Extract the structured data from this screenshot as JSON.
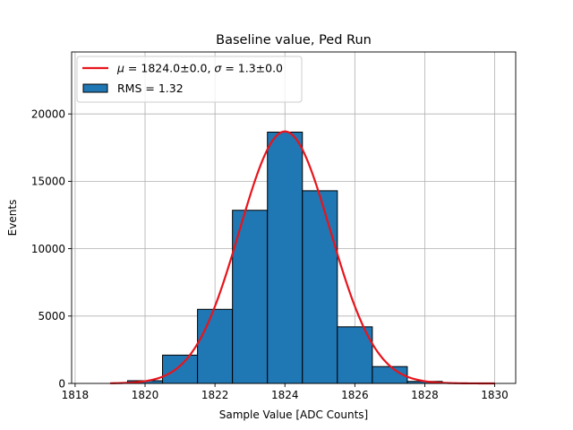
{
  "chart_data": {
    "type": "bar",
    "title": "Baseline value, Ped Run",
    "xlabel": "Sample Value [ADC Counts]",
    "ylabel": "Events",
    "xlim": [
      1817.9,
      1830.6
    ],
    "ylim": [
      0,
      24600
    ],
    "xticks": [
      1818,
      1820,
      1822,
      1824,
      1826,
      1828,
      1830
    ],
    "yticks": [
      0,
      5000,
      10000,
      15000,
      20000
    ],
    "grid": true,
    "legend_position": "top-left",
    "histogram": {
      "name": "RMS = 1.32",
      "color": "#1f77b4",
      "edgecolor": "#000000",
      "bins": [
        {
          "x0": 1819.5,
          "x1": 1820.5,
          "value": 200
        },
        {
          "x0": 1820.5,
          "x1": 1821.5,
          "value": 2100
        },
        {
          "x0": 1821.5,
          "x1": 1822.5,
          "value": 5500
        },
        {
          "x0": 1822.5,
          "x1": 1823.5,
          "value": 12850
        },
        {
          "x0": 1823.5,
          "x1": 1824.5,
          "value": 18650
        },
        {
          "x0": 1824.5,
          "x1": 1825.5,
          "value": 14300
        },
        {
          "x0": 1825.5,
          "x1": 1826.5,
          "value": 4200
        },
        {
          "x0": 1826.5,
          "x1": 1827.5,
          "value": 1250
        },
        {
          "x0": 1827.5,
          "x1": 1828.5,
          "value": 150
        }
      ]
    },
    "fit": {
      "type": "gaussian",
      "color": "#e8141c",
      "mu": 1824.0,
      "sigma": 1.3,
      "amplitude": 18700,
      "x_range": [
        1819,
        1830
      ],
      "legend": {
        "mu_symbol": "μ",
        "mu_text": " = 1824.0±0.0, ",
        "sigma_symbol": "σ",
        "sigma_text": " = 1.3±0.0"
      }
    }
  }
}
